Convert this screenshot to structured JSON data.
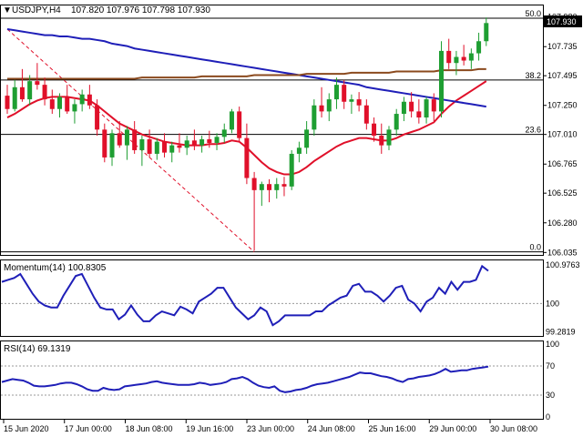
{
  "header": {
    "symbol": "USDJPY,H4",
    "ohlc": "107.820 107.976 107.798 107.930"
  },
  "colors": {
    "bull": "#1e9e32",
    "bear": "#e0102a",
    "sma_fast": "#e0102a",
    "sma_slow": "#1f1fb8",
    "sma_long": "#8b4a1e",
    "fib": "#000000",
    "trend_dashed": "#e0102a",
    "indicator": "#1f1fb8",
    "grid_dotted": "#999999",
    "price_box": "#000000"
  },
  "chart_data": [
    {
      "type": "candlestick",
      "name": "price",
      "x_labels": [
        "15 Jun 2020",
        "17 Jun 00:00",
        "18 Jun 08:00",
        "19 Jun 16:00",
        "23 Jun 00:00",
        "24 Jun 08:00",
        "25 Jun 16:00",
        "29 Jun 00:00",
        "30 Jun 08:00"
      ],
      "y_ticks": [
        "107.980",
        "107.735",
        "107.495",
        "107.250",
        "107.010",
        "106.765",
        "106.525",
        "106.280",
        "106.035"
      ],
      "ylim": [
        106.03,
        108.0
      ],
      "last_price": "107.930",
      "fib_levels": [
        {
          "label": "50.0",
          "value": 107.97
        },
        {
          "label": "38.2",
          "value": 107.46
        },
        {
          "label": "23.6",
          "value": 107.01
        },
        {
          "label": "0.0",
          "value": 106.04
        }
      ],
      "candles": [
        [
          107.33,
          107.42,
          107.18,
          107.22
        ],
        [
          107.22,
          107.46,
          107.2,
          107.4
        ],
        [
          107.4,
          107.55,
          107.28,
          107.3
        ],
        [
          107.3,
          107.5,
          107.25,
          107.45
        ],
        [
          107.45,
          107.6,
          107.38,
          107.42
        ],
        [
          107.42,
          107.48,
          107.25,
          107.3
        ],
        [
          107.3,
          107.38,
          107.18,
          107.22
        ],
        [
          107.22,
          107.35,
          107.15,
          107.32
        ],
        [
          107.32,
          107.42,
          107.18,
          107.2
        ],
        [
          107.2,
          107.3,
          107.1,
          107.26
        ],
        [
          107.26,
          107.38,
          107.2,
          107.34
        ],
        [
          107.34,
          107.42,
          107.22,
          107.25
        ],
        [
          107.25,
          107.3,
          107.0,
          107.05
        ],
        [
          107.05,
          107.1,
          106.78,
          106.82
        ],
        [
          106.82,
          107.05,
          106.75,
          107.02
        ],
        [
          107.02,
          107.12,
          106.9,
          106.92
        ],
        [
          106.92,
          107.08,
          106.8,
          107.05
        ],
        [
          107.05,
          107.12,
          106.85,
          106.88
        ],
        [
          106.88,
          107.0,
          106.75,
          106.97
        ],
        [
          106.97,
          107.05,
          106.82,
          106.85
        ],
        [
          106.85,
          106.98,
          106.8,
          106.95
        ],
        [
          106.95,
          107.02,
          106.82,
          106.86
        ],
        [
          106.86,
          106.95,
          106.78,
          106.92
        ],
        [
          106.92,
          107.02,
          106.86,
          106.9
        ],
        [
          106.9,
          107.0,
          106.84,
          106.96
        ],
        [
          106.96,
          107.05,
          106.88,
          106.92
        ],
        [
          106.92,
          107.0,
          106.86,
          106.97
        ],
        [
          106.97,
          107.04,
          106.9,
          106.94
        ],
        [
          106.94,
          107.02,
          106.88,
          106.99
        ],
        [
          106.99,
          107.1,
          106.94,
          107.05
        ],
        [
          107.05,
          107.22,
          107.02,
          107.2
        ],
        [
          107.2,
          107.24,
          106.95,
          106.98
        ],
        [
          106.98,
          107.1,
          106.6,
          106.65
        ],
        [
          106.65,
          106.7,
          106.05,
          106.55
        ],
        [
          106.55,
          106.62,
          106.42,
          106.6
        ],
        [
          106.6,
          106.64,
          106.45,
          106.55
        ],
        [
          106.55,
          106.65,
          106.48,
          106.6
        ],
        [
          106.6,
          106.66,
          106.5,
          106.58
        ],
        [
          106.58,
          106.88,
          106.55,
          106.85
        ],
        [
          106.85,
          106.95,
          106.78,
          106.9
        ],
        [
          106.9,
          107.12,
          106.85,
          107.05
        ],
        [
          107.05,
          107.3,
          107.0,
          107.25
        ],
        [
          107.25,
          107.4,
          107.15,
          107.2
        ],
        [
          107.2,
          107.35,
          107.12,
          107.3
        ],
        [
          107.3,
          107.48,
          107.22,
          107.42
        ],
        [
          107.42,
          107.46,
          107.22,
          107.28
        ],
        [
          107.28,
          107.34,
          107.18,
          107.3
        ],
        [
          107.3,
          107.36,
          107.2,
          107.25
        ],
        [
          107.25,
          107.3,
          107.05,
          107.1
        ],
        [
          107.1,
          107.15,
          106.95,
          107.0
        ],
        [
          107.0,
          107.1,
          106.85,
          106.92
        ],
        [
          106.92,
          107.08,
          106.88,
          107.05
        ],
        [
          107.05,
          107.22,
          107.0,
          107.18
        ],
        [
          107.18,
          107.32,
          107.12,
          107.28
        ],
        [
          107.28,
          107.36,
          107.15,
          107.2
        ],
        [
          107.2,
          107.3,
          107.1,
          107.15
        ],
        [
          107.15,
          107.32,
          107.1,
          107.3
        ],
        [
          107.3,
          107.35,
          107.12,
          107.2
        ],
        [
          107.2,
          107.78,
          107.15,
          107.7
        ],
        [
          107.7,
          107.8,
          107.55,
          107.6
        ],
        [
          107.6,
          107.7,
          107.5,
          107.65
        ],
        [
          107.65,
          107.75,
          107.58,
          107.62
        ],
        [
          107.62,
          107.72,
          107.55,
          107.68
        ],
        [
          107.68,
          107.85,
          107.62,
          107.78
        ],
        [
          107.78,
          107.976,
          107.74,
          107.93
        ]
      ],
      "series": [
        {
          "name": "fast",
          "values": [
            107.15,
            107.18,
            107.22,
            107.26,
            107.29,
            107.31,
            107.32,
            107.32,
            107.32,
            107.31,
            107.3,
            107.29,
            107.25,
            107.2,
            107.15,
            107.1,
            107.07,
            107.04,
            107.01,
            106.99,
            106.97,
            106.95,
            106.94,
            106.93,
            106.92,
            106.92,
            106.92,
            106.93,
            106.93,
            106.94,
            106.96,
            106.95,
            106.9,
            106.84,
            106.78,
            106.73,
            106.7,
            106.68,
            106.68,
            106.7,
            106.74,
            106.79,
            106.83,
            106.87,
            106.91,
            106.94,
            106.96,
            106.98,
            106.98,
            106.97,
            106.96,
            106.96,
            106.98,
            107.01,
            107.03,
            107.05,
            107.08,
            107.11,
            107.18,
            107.24,
            107.29,
            107.33,
            107.37,
            107.41,
            107.45
          ]
        },
        {
          "name": "slow",
          "values": [
            107.88,
            107.87,
            107.86,
            107.85,
            107.84,
            107.83,
            107.83,
            107.82,
            107.82,
            107.81,
            107.8,
            107.8,
            107.79,
            107.78,
            107.76,
            107.75,
            107.74,
            107.72,
            107.71,
            107.7,
            107.69,
            107.68,
            107.67,
            107.66,
            107.65,
            107.64,
            107.63,
            107.62,
            107.61,
            107.6,
            107.59,
            107.58,
            107.57,
            107.56,
            107.55,
            107.54,
            107.53,
            107.52,
            107.51,
            107.5,
            107.49,
            107.48,
            107.47,
            107.46,
            107.45,
            107.44,
            107.43,
            107.42,
            107.4,
            107.39,
            107.38,
            107.37,
            107.36,
            107.35,
            107.34,
            107.33,
            107.32,
            107.31,
            107.3,
            107.29,
            107.28,
            107.27,
            107.26,
            107.25,
            107.24
          ]
        },
        {
          "name": "long",
          "values": [
            107.47,
            107.47,
            107.47,
            107.47,
            107.47,
            107.47,
            107.47,
            107.47,
            107.47,
            107.47,
            107.47,
            107.47,
            107.47,
            107.47,
            107.47,
            107.47,
            107.47,
            107.47,
            107.48,
            107.48,
            107.48,
            107.48,
            107.48,
            107.48,
            107.48,
            107.48,
            107.49,
            107.49,
            107.49,
            107.49,
            107.49,
            107.49,
            107.49,
            107.5,
            107.5,
            107.5,
            107.5,
            107.5,
            107.5,
            107.5,
            107.51,
            107.51,
            107.51,
            107.51,
            107.51,
            107.51,
            107.52,
            107.52,
            107.52,
            107.52,
            107.52,
            107.52,
            107.53,
            107.53,
            107.53,
            107.53,
            107.53,
            107.53,
            107.54,
            107.54,
            107.54,
            107.54,
            107.54,
            107.55,
            107.55
          ]
        }
      ],
      "trend_line": {
        "from": [
          107.88,
          0
        ],
        "to": [
          106.04,
          33
        ]
      }
    },
    {
      "type": "line",
      "name": "momentum",
      "label": "Momentum(14) 100.8305",
      "y_ticks": [
        "100.9763",
        "100",
        "99.2819"
      ],
      "ylim": [
        99.2,
        101.05
      ],
      "reference": 100,
      "values": [
        100.55,
        100.6,
        100.65,
        100.75,
        100.5,
        100.25,
        100.05,
        99.95,
        99.9,
        99.9,
        100.2,
        100.45,
        100.7,
        100.75,
        100.45,
        100.15,
        99.9,
        99.85,
        99.85,
        99.6,
        99.72,
        99.95,
        99.72,
        99.55,
        99.55,
        99.7,
        99.8,
        99.75,
        99.7,
        99.92,
        99.85,
        99.75,
        100.05,
        100.15,
        100.25,
        100.4,
        100.4,
        100.15,
        99.9,
        99.75,
        99.6,
        99.7,
        99.9,
        99.8,
        99.45,
        99.55,
        99.7,
        99.7,
        99.7,
        99.7,
        99.7,
        99.8,
        99.8,
        99.95,
        100.05,
        100.15,
        100.2,
        100.45,
        100.5,
        100.3,
        100.3,
        100.2,
        100.05,
        100.2,
        100.4,
        100.45,
        100.1,
        100.0,
        99.8,
        100.05,
        100.15,
        100.4,
        100.25,
        100.55,
        100.35,
        100.55,
        100.55,
        100.6,
        100.95,
        100.8305
      ]
    },
    {
      "type": "line",
      "name": "rsi",
      "label": "RSI(14) 69.1319",
      "y_ticks": [
        "100",
        "70",
        "30",
        "0"
      ],
      "ylim": [
        0,
        100
      ],
      "levels": [
        70,
        30
      ],
      "values": [
        48,
        50,
        52,
        51,
        50,
        47,
        43,
        42,
        42,
        43,
        44,
        46,
        47,
        47,
        45,
        42,
        38,
        36,
        36,
        40,
        38,
        37,
        38,
        42,
        43,
        44,
        45,
        46,
        48,
        49,
        47,
        46,
        45,
        44,
        44,
        44,
        45,
        47,
        46,
        44,
        45,
        46,
        48,
        52,
        53,
        55,
        52,
        47,
        43,
        41,
        40,
        42,
        36,
        34,
        35,
        37,
        38,
        40,
        43,
        45,
        46,
        47,
        49,
        51,
        53,
        55,
        58,
        61,
        60,
        60,
        58,
        56,
        55,
        53,
        50,
        48,
        52,
        53,
        55,
        56,
        57,
        59,
        62,
        66,
        62,
        63,
        64,
        64,
        66,
        67,
        68,
        69.1319
      ]
    }
  ]
}
